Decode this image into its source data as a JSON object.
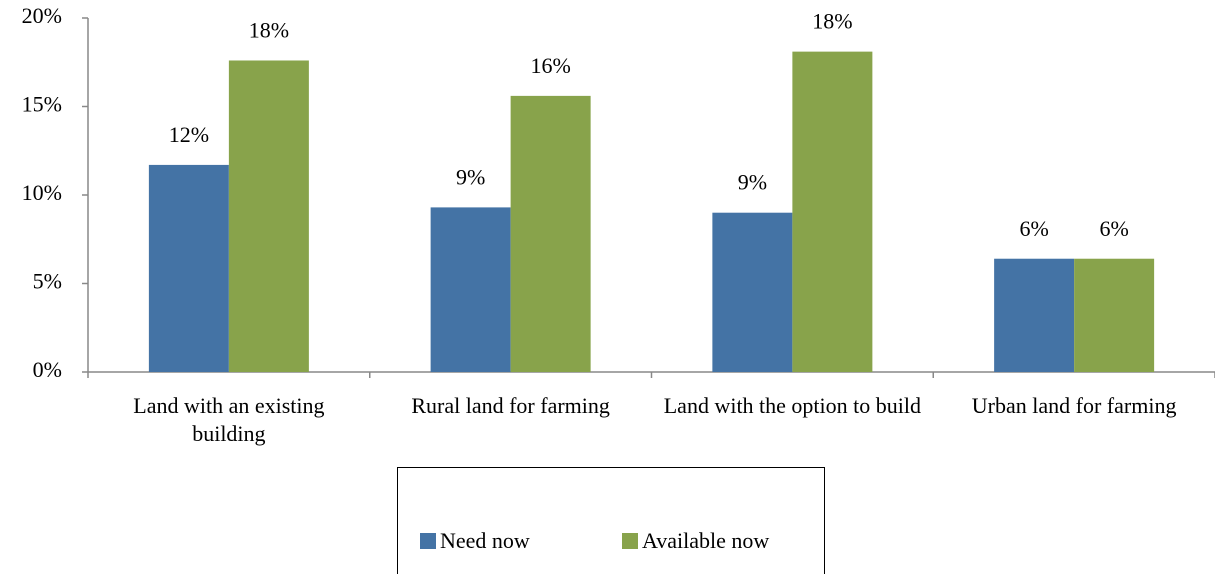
{
  "chart_data": {
    "type": "bar",
    "categories": [
      "Land with an existing building",
      "Rural land for farming",
      "Land with the option to build",
      "Urban land for farming"
    ],
    "series": [
      {
        "name": "Need now",
        "color": "#4473a5",
        "values": [
          11.7,
          9.3,
          9.0,
          6.4
        ],
        "value_labels": [
          "12%",
          "9%",
          "9%",
          "6%"
        ]
      },
      {
        "name": "Available now",
        "color": "#88a34b",
        "values": [
          17.6,
          15.6,
          18.1,
          6.4
        ],
        "value_labels": [
          "18%",
          "16%",
          "18%",
          "6%"
        ]
      }
    ],
    "ylim": [
      0,
      20
    ],
    "yticks": [
      {
        "value": 0,
        "label": "0%"
      },
      {
        "value": 5,
        "label": "5%"
      },
      {
        "value": 10,
        "label": "10%"
      },
      {
        "value": 15,
        "label": "15%"
      },
      {
        "value": 20,
        "label": "20%"
      }
    ],
    "grid": false,
    "legend": "bottom"
  }
}
